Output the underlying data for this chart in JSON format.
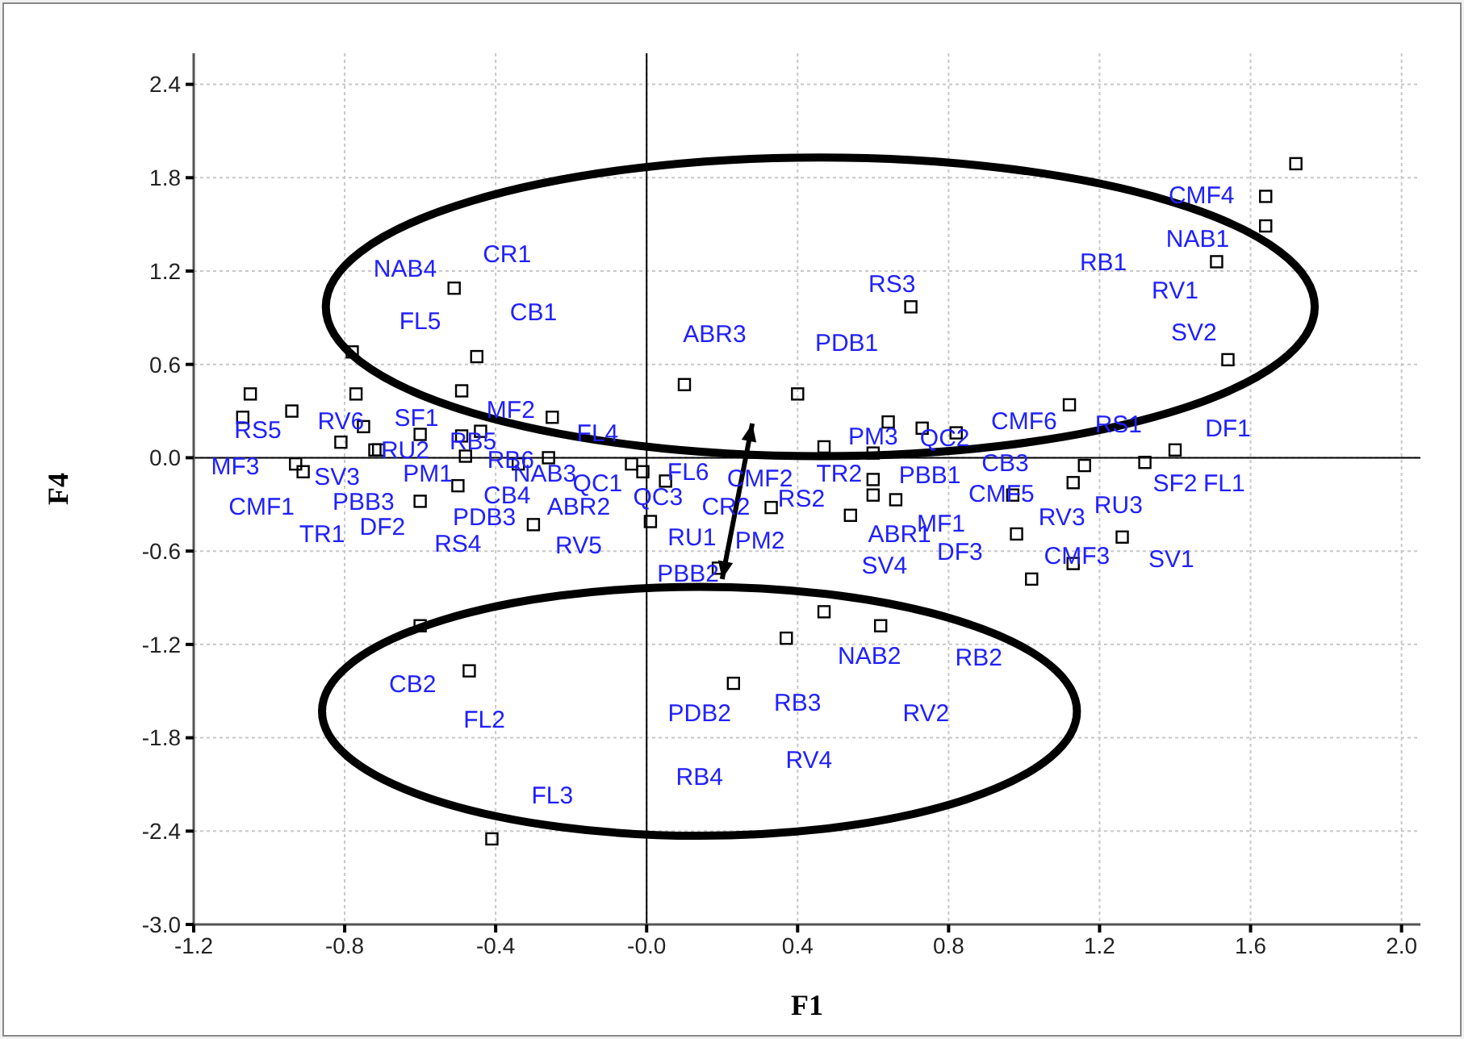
{
  "chart_data": {
    "type": "scatter",
    "xlabel": "F1",
    "ylabel": "F4",
    "xlim": [
      -1.2,
      2.05
    ],
    "ylim": [
      -3.0,
      2.6
    ],
    "xticks": [
      -1.2,
      -0.8,
      -0.4,
      {
        "value": 0,
        "label": "-0.0"
      },
      0.4,
      0.8,
      1.2,
      1.6,
      {
        "value": 2,
        "label": "2.0"
      }
    ],
    "yticks": [
      {
        "value": -3,
        "label": "-3.0"
      },
      -2.4,
      -1.8,
      -1.2,
      -0.6,
      {
        "value": 0,
        "label": "0.0"
      },
      0.6,
      1.2,
      1.8,
      2.4
    ],
    "grid": true,
    "marker": "square",
    "series": [
      {
        "color": "#000000",
        "x": [
          -0.51,
          -0.45,
          -0.78,
          -1.05,
          -0.94,
          -0.77,
          -0.81,
          -0.75,
          -0.72,
          -0.71,
          -1.07,
          -0.93,
          -0.91,
          -0.6,
          -0.49,
          -0.44,
          -0.48,
          -0.5,
          -0.49,
          -0.25,
          -0.26,
          -0.34,
          -0.6,
          -0.3,
          -0.6,
          -0.47,
          -0.41,
          0.1,
          0.4,
          0.7,
          0.47,
          0.6,
          0.64,
          0.73,
          0.82,
          -0.04,
          -0.01,
          0.05,
          0.6,
          0.6,
          0.66,
          0.01,
          0.19,
          0.33,
          0.54,
          0.47,
          0.62,
          0.37,
          0.23,
          1.72,
          1.64,
          1.64,
          1.51,
          1.54,
          1.12,
          1.4,
          1.16,
          1.32,
          1.13,
          0.97,
          0.98,
          1.26,
          1.13,
          1.02
        ],
        "values": [
          1.09,
          0.65,
          0.68,
          0.41,
          0.3,
          0.41,
          0.1,
          0.2,
          0.05,
          0.05,
          0.26,
          -0.04,
          -0.09,
          0.15,
          0.14,
          0.17,
          0.01,
          -0.18,
          0.43,
          0.26,
          0.0,
          -0.04,
          -0.28,
          -0.43,
          -1.08,
          -1.37,
          -2.45,
          0.47,
          0.41,
          0.97,
          0.07,
          0.03,
          0.23,
          0.19,
          0.16,
          -0.04,
          -0.09,
          -0.15,
          -0.14,
          -0.24,
          -0.27,
          -0.41,
          -0.71,
          -0.32,
          -0.37,
          -0.99,
          -1.08,
          -1.16,
          -1.45,
          1.89,
          1.68,
          1.49,
          1.26,
          0.63,
          0.34,
          0.05,
          -0.05,
          -0.03,
          -0.16,
          -0.24,
          -0.49,
          -0.51,
          -0.68,
          -0.78
        ]
      }
    ],
    "annotations": [
      "NAB4",
      "CR1",
      "FL5",
      "CB1",
      "ABR3",
      "RS3",
      "PDB1",
      "CMF4",
      "NAB1",
      "RB1",
      "RV1",
      "SV2",
      "RS5",
      "RV6",
      "SF1",
      "MF2",
      "FL4",
      "RU2",
      "RB5",
      "RB6",
      "MF3",
      "SV3",
      "PM1",
      "NAB3",
      "QC1",
      "CMF1",
      "PBB3",
      "TR1",
      "DF2",
      "CB4",
      "PDB3",
      "ABR2",
      "RS4",
      "RV5",
      "FL6",
      "CMF2",
      "TR2",
      "QC3",
      "CR2",
      "RS2",
      "PM3",
      "QC2",
      "PBB1",
      "RU1",
      "PM2",
      "ABR1",
      "MF1",
      "SV4",
      "DF3",
      "PBB2",
      "CMF6",
      "CB3",
      "RS1",
      "DF1",
      "CMF5",
      "SF2",
      "FL1",
      "RV3",
      "RU3",
      "CMF3",
      "SV1",
      "CB2",
      "FL2",
      "FL3",
      "PDB2",
      "RB3",
      "NAB2",
      "RB2",
      "RV2",
      "RV4",
      "RB4"
    ]
  }
}
